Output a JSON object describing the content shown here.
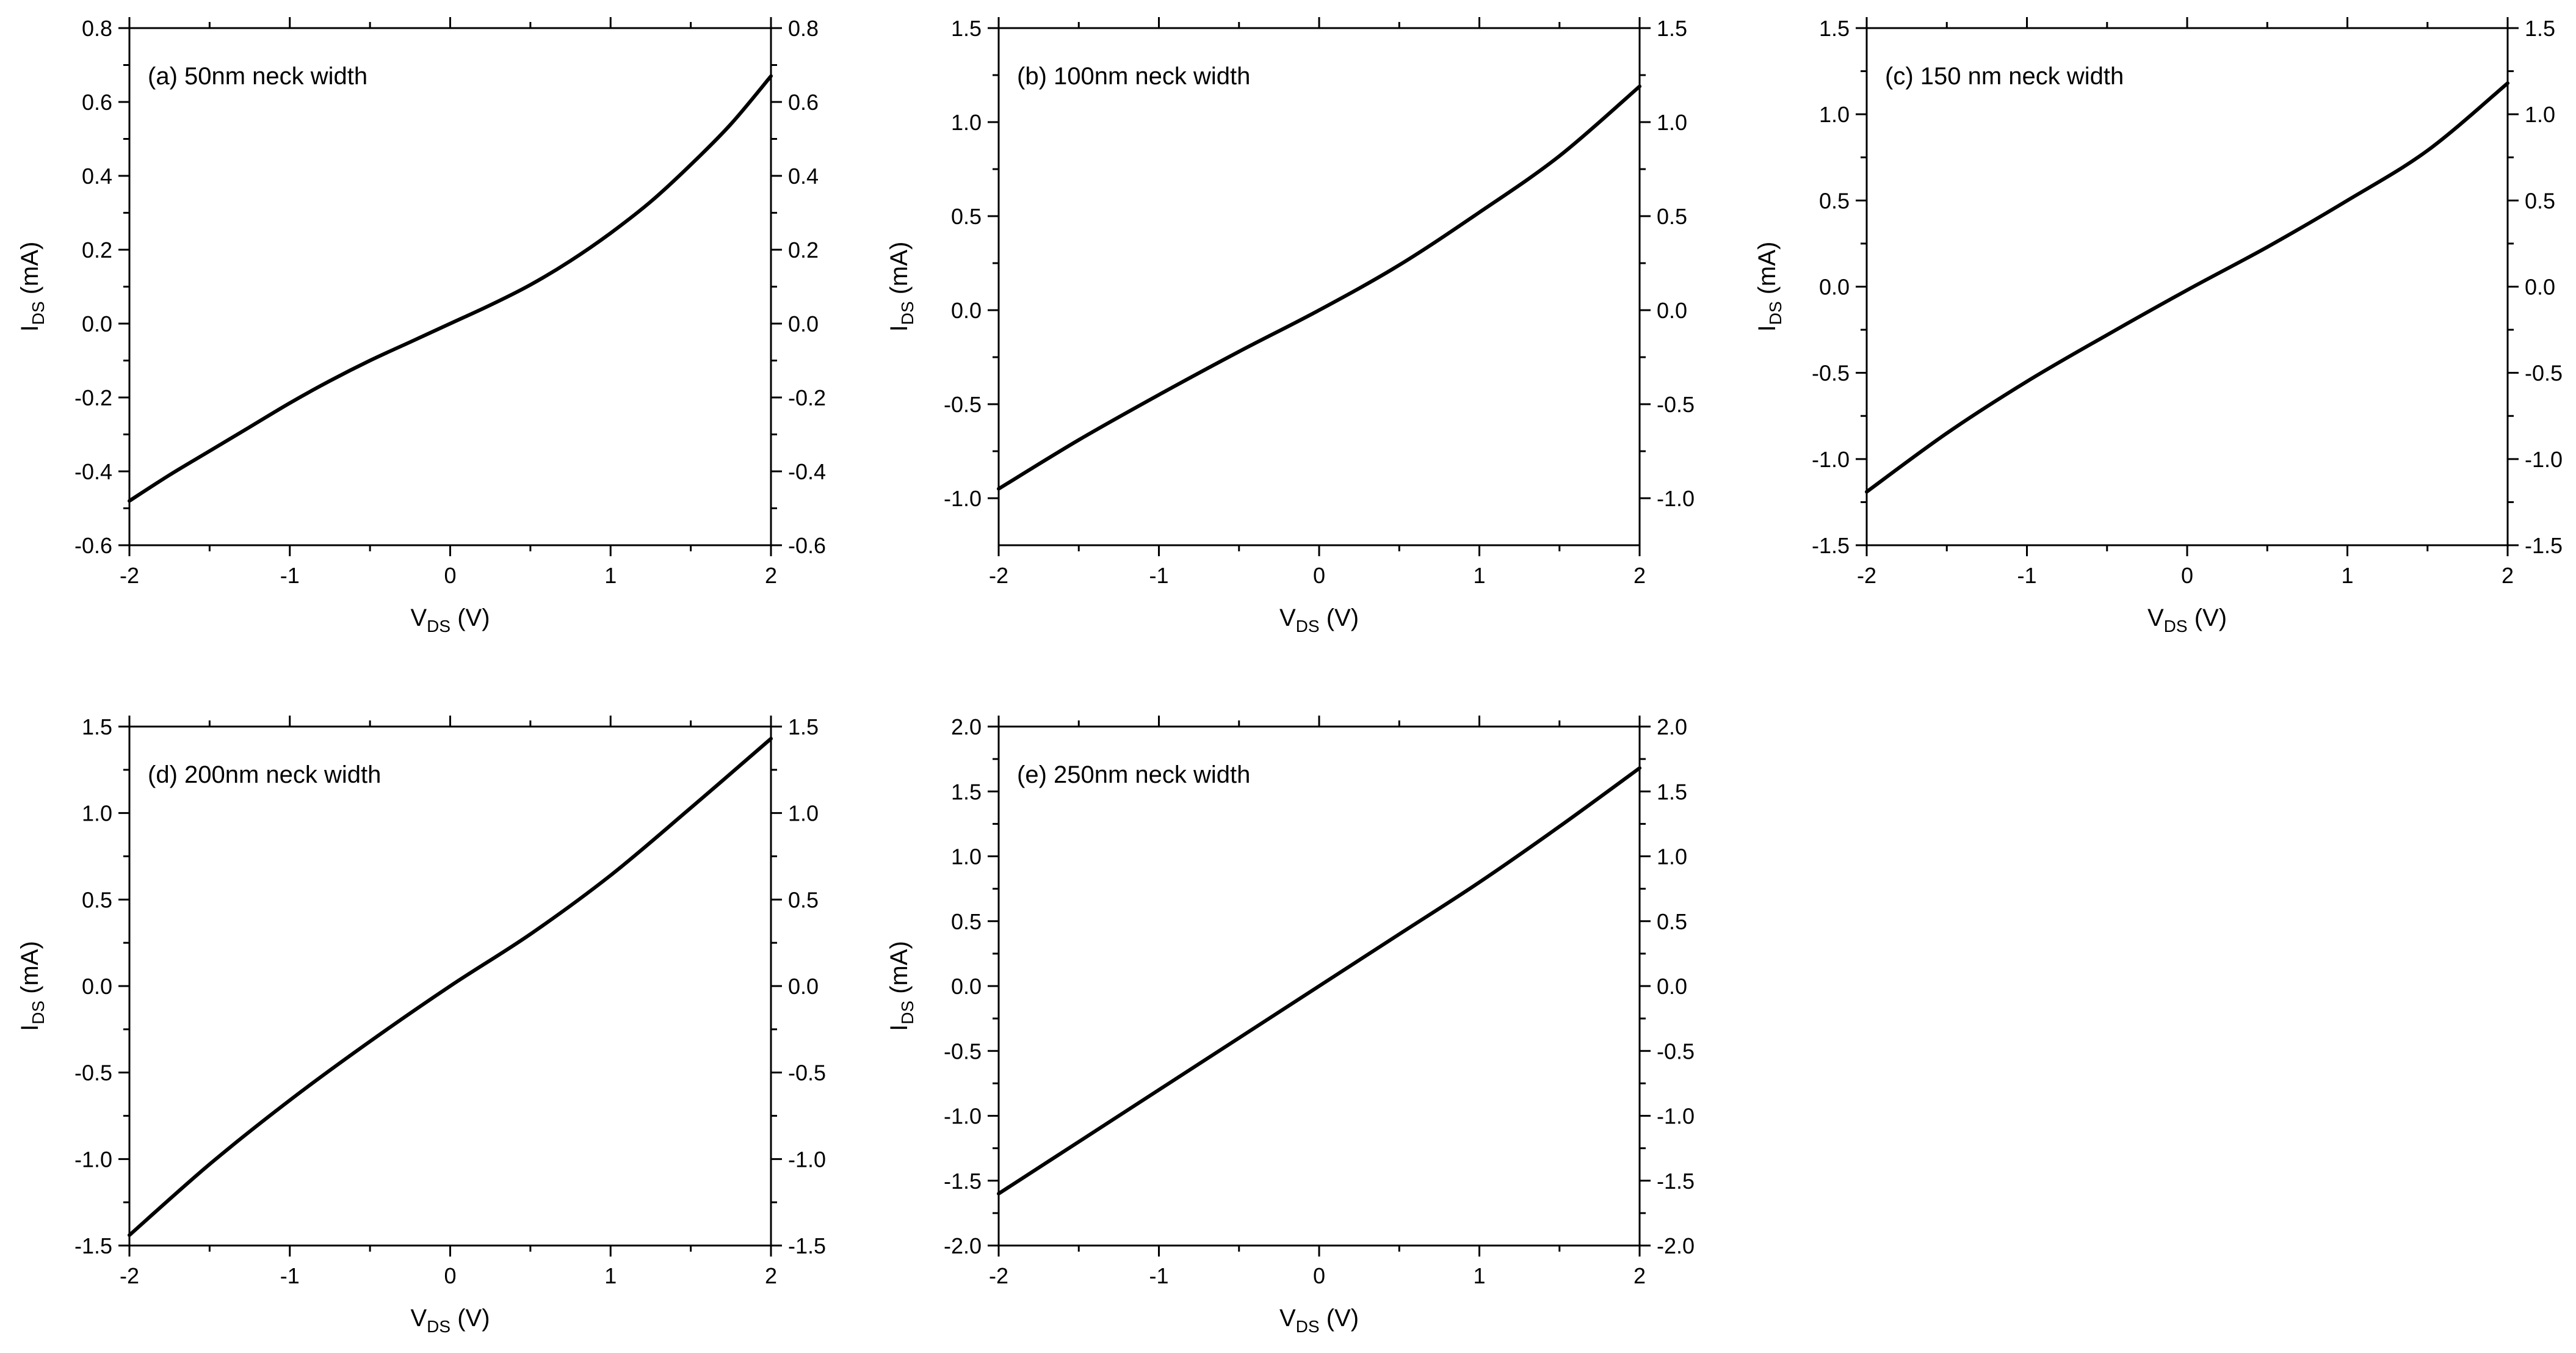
{
  "chart_data": [
    {
      "type": "line",
      "annotation": "(a) 50nm neck width",
      "xlabel": {
        "main": "V",
        "sub": "DS",
        "unit": " (V)"
      },
      "ylabel": {
        "main": "I",
        "sub": "DS",
        "unit": " (mA)"
      },
      "xlim": [
        -2,
        2
      ],
      "ylim": [
        -0.6,
        0.8
      ],
      "xticks": [
        -2,
        -1,
        0,
        1,
        2
      ],
      "xtick_labels": [
        "-2",
        "-1",
        "0",
        "1",
        "2"
      ],
      "yticks": [
        -0.6,
        -0.4,
        -0.2,
        0,
        0.2,
        0.4,
        0.6,
        0.8
      ],
      "ytick_labels": [
        "-0.6",
        "-0.4",
        "-0.2",
        "0.0",
        "0.2",
        "0.4",
        "0.6",
        "0.8"
      ],
      "right_axis_labels": true,
      "series": [
        {
          "x": [
            -2,
            -1.75,
            -1.5,
            -1.25,
            -1,
            -0.75,
            -0.5,
            -0.25,
            0,
            0.25,
            0.5,
            0.75,
            1,
            1.25,
            1.5,
            1.75,
            2
          ],
          "y": [
            -0.48,
            -0.41,
            -0.345,
            -0.28,
            -0.215,
            -0.155,
            -0.1,
            -0.05,
            0,
            0.05,
            0.105,
            0.17,
            0.245,
            0.33,
            0.43,
            0.54,
            0.67
          ]
        }
      ]
    },
    {
      "type": "line",
      "annotation": "(b) 100nm neck width",
      "xlabel": {
        "main": "V",
        "sub": "DS",
        "unit": " (V)"
      },
      "ylabel": {
        "main": "I",
        "sub": "DS",
        "unit": " (mA)"
      },
      "xlim": [
        -2,
        2
      ],
      "ylim": [
        -1.25,
        1.5
      ],
      "xticks": [
        -2,
        -1,
        0,
        1,
        2
      ],
      "xtick_labels": [
        "-2",
        "-1",
        "0",
        "1",
        "2"
      ],
      "yticks": [
        -1.0,
        -0.5,
        0,
        0.5,
        1.0,
        1.5
      ],
      "ytick_labels": [
        "-1.0",
        "-0.5",
        "0.0",
        "0.5",
        "1.0",
        "1.5"
      ],
      "right_axis_labels": true,
      "series": [
        {
          "x": [
            -2,
            -1.5,
            -1,
            -0.5,
            0,
            0.5,
            1,
            1.5,
            2
          ],
          "y": [
            -0.95,
            -0.69,
            -0.45,
            -0.22,
            0,
            0.24,
            0.52,
            0.82,
            1.19
          ]
        }
      ]
    },
    {
      "type": "line",
      "annotation": "(c) 150 nm neck width",
      "xlabel": {
        "main": "V",
        "sub": "DS",
        "unit": " (V)"
      },
      "ylabel": {
        "main": "I",
        "sub": "DS",
        "unit": " (mA)"
      },
      "xlim": [
        -2,
        2
      ],
      "ylim": [
        -1.5,
        1.5
      ],
      "xticks": [
        -2,
        -1,
        0,
        1,
        2
      ],
      "xtick_labels": [
        "-2",
        "-1",
        "0",
        "1",
        "2"
      ],
      "yticks": [
        -1.5,
        -1.0,
        -0.5,
        0,
        0.5,
        1.0,
        1.5
      ],
      "ytick_labels": [
        "-1.5",
        "-1.0",
        "-0.5",
        "0.0",
        "0.5",
        "1.0",
        "1.5"
      ],
      "right_axis_labels": true,
      "series": [
        {
          "x": [
            -2,
            -1.5,
            -1,
            -0.5,
            0,
            0.5,
            1,
            1.5,
            2
          ],
          "y": [
            -1.19,
            -0.85,
            -0.55,
            -0.28,
            -0.02,
            0.23,
            0.5,
            0.79,
            1.18
          ]
        }
      ]
    },
    {
      "type": "line",
      "annotation": "(d) 200nm neck width",
      "xlabel": {
        "main": "V",
        "sub": "DS",
        "unit": " (V)"
      },
      "ylabel": {
        "main": "I",
        "sub": "DS",
        "unit": " (mA)"
      },
      "xlim": [
        -2,
        2
      ],
      "ylim": [
        -1.5,
        1.5
      ],
      "xticks": [
        -2,
        -1,
        0,
        1,
        2
      ],
      "xtick_labels": [
        "-2",
        "-1",
        "0",
        "1",
        "2"
      ],
      "yticks": [
        -1.5,
        -1.0,
        -0.5,
        0,
        0.5,
        1.0,
        1.5
      ],
      "ytick_labels": [
        "-1.5",
        "-1.0",
        "-0.5",
        "0.0",
        "0.5",
        "1.0",
        "1.5"
      ],
      "right_axis_labels": true,
      "series": [
        {
          "x": [
            -2,
            -1.5,
            -1,
            -0.5,
            0,
            0.5,
            1,
            1.5,
            2
          ],
          "y": [
            -1.44,
            -1.03,
            -0.66,
            -0.32,
            0,
            0.3,
            0.64,
            1.03,
            1.43
          ]
        }
      ]
    },
    {
      "type": "line",
      "annotation": "(e) 250nm neck width",
      "xlabel": {
        "main": "V",
        "sub": "DS",
        "unit": " (V)"
      },
      "ylabel": {
        "main": "I",
        "sub": "DS",
        "unit": " (mA)"
      },
      "xlim": [
        -2,
        2
      ],
      "ylim": [
        -2.0,
        2.0
      ],
      "xticks": [
        -2,
        -1,
        0,
        1,
        2
      ],
      "xtick_labels": [
        "-2",
        "-1",
        "0",
        "1",
        "2"
      ],
      "yticks": [
        -2.0,
        -1.5,
        -1.0,
        -0.5,
        0,
        0.5,
        1.0,
        1.5,
        2.0
      ],
      "ytick_labels": [
        "-2.0",
        "-1.5",
        "-1.0",
        "-0.5",
        "0.0",
        "0.5",
        "1.0",
        "1.5",
        "2.0"
      ],
      "right_axis_labels": true,
      "series": [
        {
          "x": [
            -2,
            -1.5,
            -1,
            -0.5,
            0,
            0.5,
            1,
            1.5,
            2
          ],
          "y": [
            -1.6,
            -1.2,
            -0.8,
            -0.4,
            0,
            0.4,
            0.8,
            1.23,
            1.68
          ]
        }
      ]
    }
  ]
}
